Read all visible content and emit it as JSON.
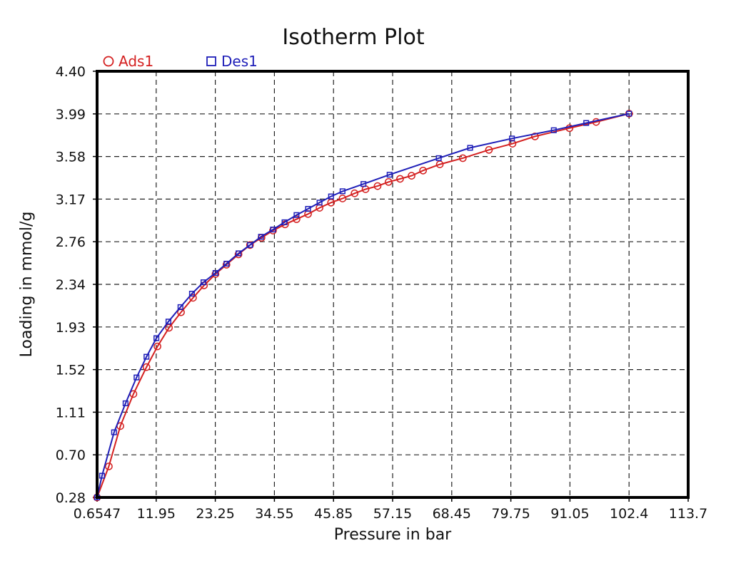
{
  "chart_data": {
    "type": "line",
    "title": "Isotherm Plot",
    "xlabel": "Pressure in bar",
    "ylabel": "Loading in mmol/g",
    "xlim": [
      0.6547,
      113.7
    ],
    "ylim": [
      0.28,
      4.4
    ],
    "xticks": [
      "0.6547",
      "11.95",
      "23.25",
      "34.55",
      "45.85",
      "57.15",
      "68.45",
      "79.75",
      "91.05",
      "102.4",
      "113.7"
    ],
    "yticks": [
      "0.28",
      "0.70",
      "1.11",
      "1.52",
      "1.93",
      "2.34",
      "2.76",
      "3.17",
      "3.58",
      "3.99",
      "4.40"
    ],
    "grid": true,
    "legend_position": "top-left",
    "series": [
      {
        "name": "Ads1",
        "color": "#d42020",
        "marker": "circle",
        "x": [
          0.65,
          2.9,
          5.1,
          7.6,
          10.1,
          12.2,
          14.4,
          16.7,
          19.0,
          21.1,
          23.3,
          25.4,
          27.7,
          29.9,
          32.1,
          34.3,
          36.6,
          38.8,
          41.0,
          43.2,
          45.4,
          47.6,
          49.9,
          52.0,
          54.3,
          56.4,
          58.6,
          60.8,
          63.0,
          66.2,
          70.6,
          75.6,
          80.1,
          84.4,
          91.0,
          96.1,
          102.4
        ],
        "y": [
          0.28,
          0.58,
          0.97,
          1.28,
          1.54,
          1.74,
          1.92,
          2.07,
          2.21,
          2.33,
          2.44,
          2.53,
          2.63,
          2.72,
          2.79,
          2.86,
          2.92,
          2.97,
          3.02,
          3.08,
          3.13,
          3.17,
          3.22,
          3.26,
          3.29,
          3.33,
          3.36,
          3.39,
          3.44,
          3.5,
          3.56,
          3.64,
          3.7,
          3.77,
          3.85,
          3.91,
          3.99
        ]
      },
      {
        "name": "Des1",
        "color": "#1f1fb8",
        "marker": "square",
        "x": [
          0.65,
          1.6,
          3.9,
          6.1,
          8.2,
          10.1,
          12.0,
          14.3,
          16.6,
          18.8,
          21.0,
          23.3,
          25.4,
          27.7,
          29.9,
          32.0,
          34.3,
          36.5,
          38.8,
          41.0,
          43.2,
          45.4,
          47.6,
          51.6,
          56.6,
          66.0,
          72.0,
          80.0,
          88.0,
          94.2,
          102.4
        ],
        "y": [
          0.28,
          0.49,
          0.91,
          1.19,
          1.44,
          1.64,
          1.82,
          1.98,
          2.12,
          2.25,
          2.36,
          2.45,
          2.54,
          2.64,
          2.72,
          2.8,
          2.87,
          2.94,
          3.01,
          3.07,
          3.13,
          3.19,
          3.24,
          3.31,
          3.4,
          3.56,
          3.66,
          3.75,
          3.83,
          3.9,
          3.99
        ]
      }
    ]
  }
}
